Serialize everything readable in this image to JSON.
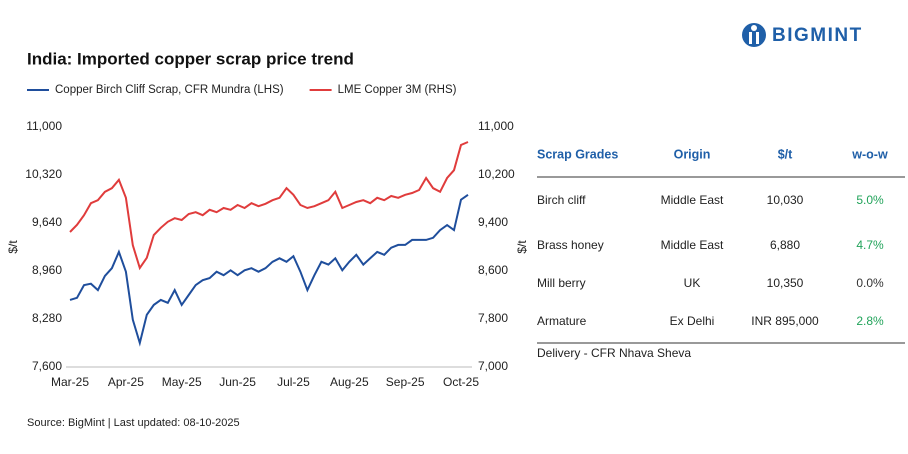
{
  "logo": {
    "text": "BIGMINT"
  },
  "chart_data": {
    "type": "line",
    "title": "India: Imported copper scrap price trend",
    "y_label": "$/t",
    "y2_label": "$/t",
    "categories": [
      "Mar-25",
      null,
      null,
      null,
      null,
      null,
      null,
      null,
      "Apr-25",
      null,
      null,
      null,
      null,
      null,
      null,
      null,
      "May-25",
      null,
      null,
      null,
      null,
      null,
      null,
      null,
      "Jun-25",
      null,
      null,
      null,
      null,
      null,
      null,
      null,
      "Jul-25",
      null,
      null,
      null,
      null,
      null,
      null,
      null,
      "Aug-25",
      null,
      null,
      null,
      null,
      null,
      null,
      null,
      "Sep-25",
      null,
      null,
      null,
      null,
      null,
      null,
      null,
      "Oct-25",
      null
    ],
    "series": [
      {
        "name": "Copper Birch Cliff Scrap, CFR Mundra (LHS)",
        "color": "#1f4e9c",
        "axis": "y",
        "values": [
          8550,
          8580,
          8760,
          8780,
          8690,
          8890,
          9000,
          9230,
          8950,
          8270,
          7940,
          8340,
          8480,
          8550,
          8510,
          8690,
          8480,
          8620,
          8760,
          8830,
          8860,
          8950,
          8900,
          8970,
          8900,
          8970,
          9000,
          8950,
          9000,
          9090,
          9140,
          9090,
          9170,
          8950,
          8690,
          8900,
          9090,
          9050,
          9140,
          8970,
          9090,
          9190,
          9050,
          9140,
          9230,
          9190,
          9290,
          9330,
          9330,
          9400,
          9400,
          9400,
          9430,
          9540,
          9610,
          9540,
          9970,
          10040
        ]
      },
      {
        "name": "LME Copper 3M (RHS)",
        "color": "#e03c3c",
        "axis": "y2",
        "values": [
          9250,
          9370,
          9530,
          9730,
          9780,
          9920,
          9980,
          10120,
          9820,
          9030,
          8650,
          8820,
          9200,
          9320,
          9420,
          9480,
          9450,
          9550,
          9580,
          9530,
          9620,
          9580,
          9650,
          9620,
          9700,
          9650,
          9730,
          9680,
          9720,
          9780,
          9820,
          9980,
          9870,
          9700,
          9650,
          9680,
          9730,
          9780,
          9920,
          9650,
          9700,
          9750,
          9780,
          9730,
          9820,
          9780,
          9850,
          9820,
          9870,
          9900,
          9950,
          10150,
          9980,
          9920,
          10150,
          10280,
          10700,
          10750
        ]
      }
    ],
    "ylim": [
      7600,
      11000
    ],
    "yticks": [
      {
        "value": 7600,
        "label": "7,600"
      },
      {
        "value": 8280,
        "label": "8,280"
      },
      {
        "value": 8960,
        "label": "8,960"
      },
      {
        "value": 9640,
        "label": "9,640"
      },
      {
        "value": 10320,
        "label": "10,320"
      },
      {
        "value": 11000,
        "label": "11,000"
      }
    ],
    "y2lim": [
      7000,
      11000
    ],
    "y2ticks": [
      {
        "value": 7000,
        "label": "7,000"
      },
      {
        "value": 7800,
        "label": "7,800"
      },
      {
        "value": 8600,
        "label": "8,600"
      },
      {
        "value": 9400,
        "label": "9,400"
      },
      {
        "value": 10200,
        "label": "10,200"
      },
      {
        "value": 11000,
        "label": "11,000"
      }
    ],
    "grid": false,
    "legend": "top"
  },
  "table": {
    "header": [
      "Scrap Grades",
      "Origin",
      "$/t",
      "w-o-w"
    ],
    "rows": [
      [
        "Birch cliff",
        "Middle East",
        "10,030",
        "5.0%"
      ],
      [
        "Brass honey",
        "Middle East",
        "6,880",
        "4.7%"
      ],
      [
        "Mill berry",
        "UK",
        "10,350",
        "0.0%"
      ],
      [
        "Armature",
        "Ex Delhi",
        "INR 895,000",
        "2.8%"
      ]
    ],
    "change_colors": [
      "#21a35a",
      "#21a35a",
      "#333333",
      "#21a35a"
    ],
    "note": "Delivery - CFR Nhava Sheva"
  },
  "footer": {
    "source": "Source: BigMint | Last updated: 08-10-2025"
  }
}
